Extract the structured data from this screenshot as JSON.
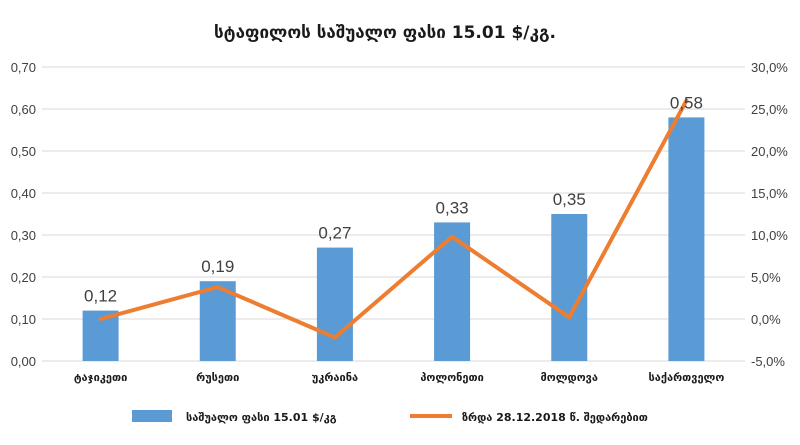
{
  "chart_data": {
    "type": "bar",
    "title": "სტაფილოს საშუალო ფასი 15.01 $/კგ.",
    "categories": [
      "ტაჯიკეთი",
      "რუსეთი",
      "უკრაინა",
      "პოლონეთი",
      "მოლდოვა",
      "საქართველო"
    ],
    "series": [
      {
        "name": "საშუალო ფასი 15.01 $/კგ",
        "type": "bar",
        "axis": "left",
        "color": "#5b9bd5",
        "values": [
          0.12,
          0.19,
          0.27,
          0.33,
          0.35,
          0.58
        ],
        "labels": [
          "0,12",
          "0,19",
          "0,27",
          "0,33",
          "0,35",
          "0,58"
        ]
      },
      {
        "name": "ზრდა 28.12.2018 წ. შედარებით",
        "type": "line",
        "axis": "right",
        "color": "#ed7d31",
        "values": [
          0.0,
          3.8,
          -2.2,
          9.8,
          0.2,
          26.0
        ]
      }
    ],
    "y_left": {
      "ylim": [
        0,
        0.7
      ],
      "ticks": [
        "0,00",
        "0,10",
        "0,20",
        "0,30",
        "0,40",
        "0,50",
        "0,60",
        "0,70"
      ]
    },
    "y_right": {
      "ylim": [
        -5,
        30
      ],
      "ticks": [
        "-5,0%",
        "0,0%",
        "5,0%",
        "10,0%",
        "15,0%",
        "20,0%",
        "25,0%",
        "30,0%"
      ]
    },
    "grid": true,
    "legend": "bottom"
  }
}
